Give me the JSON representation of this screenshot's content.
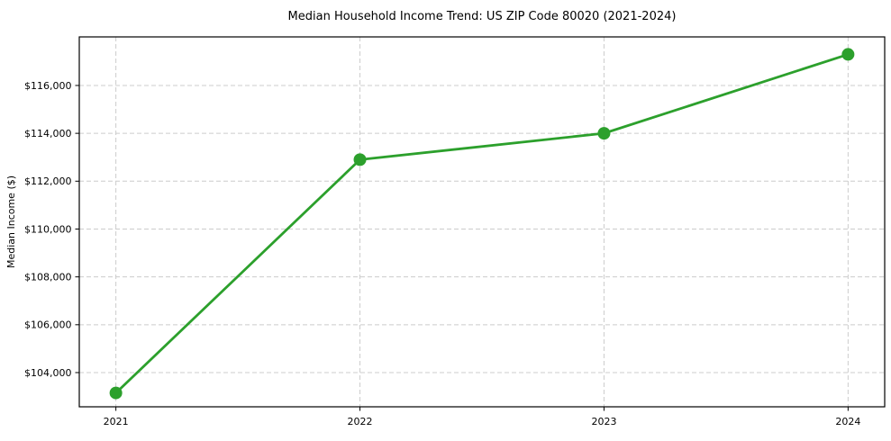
{
  "page": {
    "background": "#ffffff"
  },
  "chart_data": {
    "type": "line",
    "title": "Median Household Income Trend: US ZIP Code 80020 (2021-2024)",
    "xlabel": "",
    "ylabel": "Median Income ($)",
    "categories": [
      "2021",
      "2022",
      "2023",
      "2024"
    ],
    "series": [
      {
        "name": "Median Income",
        "color": "#2ca02c",
        "values": [
          103150,
          112900,
          114000,
          117300
        ]
      }
    ],
    "y_ticks": [
      104000,
      106000,
      108000,
      110000,
      112000,
      114000,
      116000
    ],
    "y_tick_labels": [
      "$104,000",
      "$106,000",
      "$108,000",
      "$110,000",
      "$112,000",
      "$114,000",
      "$116,000"
    ],
    "ylim": [
      102570,
      118030
    ],
    "x_margin_years": 0.15,
    "grid": {
      "show": true,
      "axes": "both",
      "style": "dashed"
    },
    "legend": "none",
    "marker": {
      "shape": "circle",
      "radius": 7
    },
    "line_width": 2.8
  },
  "colors": {
    "line": "#2ca02c",
    "grid": "#cccccc",
    "spine": "#000000",
    "text": "#000000",
    "background": "#ffffff"
  }
}
